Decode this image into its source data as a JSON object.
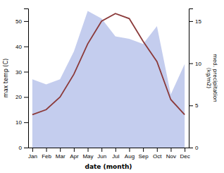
{
  "chart_data": {
    "type": "line",
    "categories": [
      "Jan",
      "Feb",
      "Mar",
      "Apr",
      "May",
      "Jun",
      "Jul",
      "Aug",
      "Sep",
      "Oct",
      "Nov",
      "Dec"
    ],
    "series": [
      {
        "type": "area",
        "color": "#b0bce8",
        "values": [
          27,
          25,
          27,
          38,
          54,
          51,
          44,
          43,
          41,
          48,
          21,
          33
        ]
      },
      {
        "type": "line",
        "color": "#8B3A3A",
        "values": [
          13,
          15,
          20,
          29,
          41,
          50,
          53,
          51,
          42,
          34,
          19,
          13
        ]
      }
    ],
    "xlabel": "date (month)",
    "ylabel": "max temp (C)",
    "y2label": "med. precipitation\n(kg/m2)",
    "ylim": [
      0,
      55
    ],
    "yticks": [
      0,
      10,
      20,
      30,
      40,
      50
    ],
    "y2lim": [
      0,
      16.5
    ],
    "y2ticks": [
      0,
      5,
      10,
      15
    ],
    "grid": false
  }
}
